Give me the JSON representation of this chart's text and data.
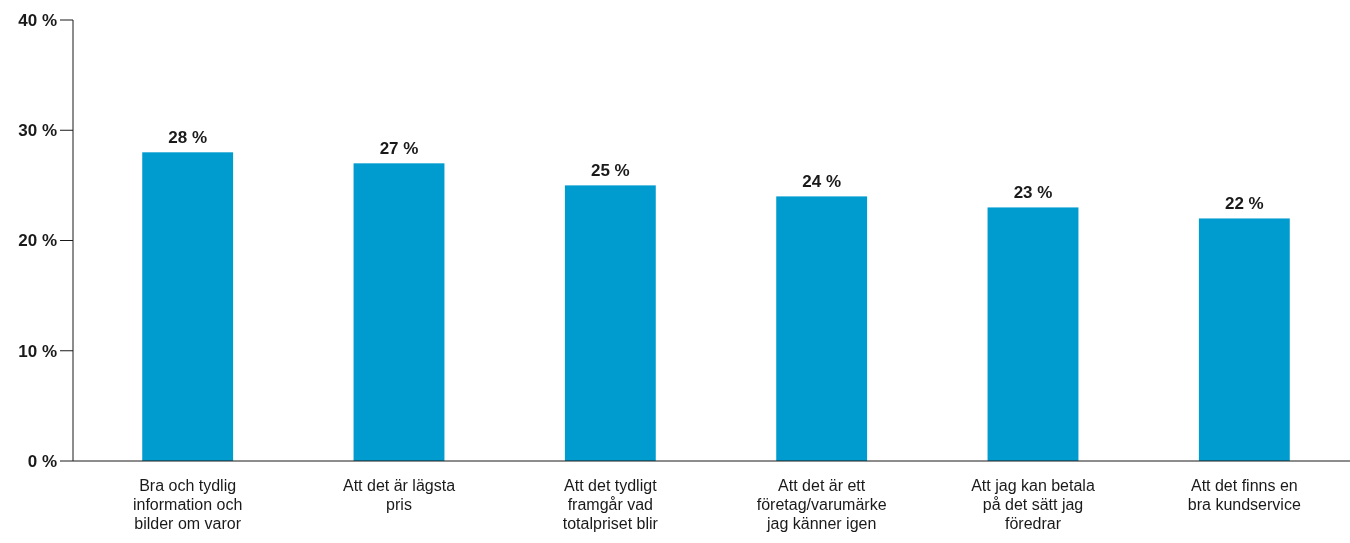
{
  "chart_data": {
    "type": "bar",
    "categories": [
      "Bra och tydlig information och bilder om varor",
      "Att det är lägsta pris",
      "Att det tydligt framgår vad totalpriset blir",
      "Att det är ett företag/varumärke jag känner igen",
      "Att jag kan betala på det sätt jag föredrar",
      "Att det finns en bra kundservice"
    ],
    "values": [
      28,
      27,
      25,
      24,
      23,
      22
    ],
    "value_labels": [
      "28 %",
      "27 %",
      "25 %",
      "24 %",
      "23 %",
      "22 %"
    ],
    "color": "#009ccf",
    "ylim": [
      0,
      40
    ],
    "yticks": [
      {
        "value": 0,
        "label": "0 %"
      },
      {
        "value": 10,
        "label": "10 %"
      },
      {
        "value": 20,
        "label": "20 %"
      },
      {
        "value": 30,
        "label": "30 %"
      },
      {
        "value": 40,
        "label": "40 %"
      }
    ],
    "grid": false
  }
}
